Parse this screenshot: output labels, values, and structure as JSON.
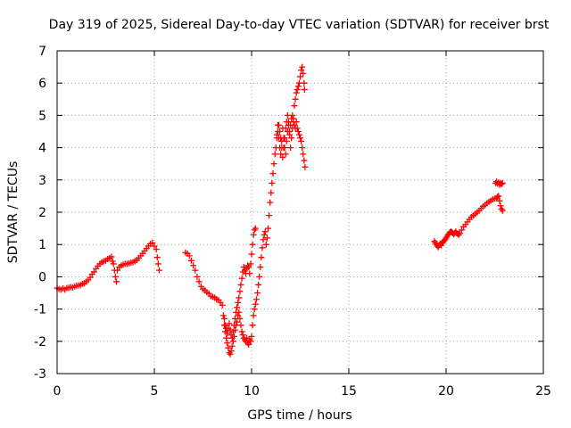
{
  "chart_data": {
    "type": "scatter",
    "title": "Day 319 of 2025, Sidereal Day-to-day VTEC variation (SDTVAR) for receiver brst",
    "xlabel": "GPS time / hours",
    "ylabel": "SDTVAR / TECUs",
    "xlim": [
      0,
      25
    ],
    "ylim": [
      -3,
      7
    ],
    "xticks": [
      "0",
      "5",
      "10",
      "15",
      "20",
      "25"
    ],
    "yticks": [
      "-3",
      "-2",
      "-1",
      "0",
      "1",
      "2",
      "3",
      "4",
      "5",
      "6",
      "7"
    ],
    "grid": true,
    "marker": "+",
    "color": "#ff0000",
    "series": [
      {
        "points": [
          [
            0.0,
            -0.35
          ],
          [
            0.1,
            -0.38
          ],
          [
            0.2,
            -0.4
          ],
          [
            0.3,
            -0.36
          ],
          [
            0.4,
            -0.4
          ],
          [
            0.5,
            -0.35
          ],
          [
            0.6,
            -0.34
          ],
          [
            0.7,
            -0.32
          ],
          [
            0.8,
            -0.33
          ],
          [
            0.9,
            -0.3
          ],
          [
            1.0,
            -0.28
          ],
          [
            1.1,
            -0.27
          ],
          [
            1.2,
            -0.26
          ],
          [
            1.3,
            -0.22
          ],
          [
            1.4,
            -0.2
          ],
          [
            1.5,
            -0.15
          ],
          [
            1.6,
            -0.1
          ],
          [
            1.7,
            -0.02
          ],
          [
            1.8,
            0.08
          ],
          [
            1.9,
            0.15
          ],
          [
            2.0,
            0.25
          ],
          [
            2.1,
            0.33
          ],
          [
            2.2,
            0.4
          ],
          [
            2.3,
            0.45
          ],
          [
            2.4,
            0.48
          ],
          [
            2.5,
            0.5
          ],
          [
            2.6,
            0.55
          ],
          [
            2.7,
            0.58
          ],
          [
            2.8,
            0.62
          ],
          [
            2.85,
            0.48
          ],
          [
            2.9,
            0.4
          ],
          [
            2.95,
            0.2
          ],
          [
            3.0,
            0.0
          ],
          [
            3.05,
            -0.15
          ],
          [
            3.1,
            0.2
          ],
          [
            3.2,
            0.3
          ],
          [
            3.3,
            0.35
          ],
          [
            3.4,
            0.38
          ],
          [
            3.5,
            0.4
          ],
          [
            3.6,
            0.4
          ],
          [
            3.7,
            0.42
          ],
          [
            3.8,
            0.44
          ],
          [
            3.9,
            0.45
          ],
          [
            4.0,
            0.48
          ],
          [
            4.1,
            0.52
          ],
          [
            4.2,
            0.58
          ],
          [
            4.3,
            0.65
          ],
          [
            4.4,
            0.72
          ],
          [
            4.5,
            0.8
          ],
          [
            4.6,
            0.88
          ],
          [
            4.7,
            0.95
          ],
          [
            4.8,
            1.02
          ],
          [
            4.9,
            1.05
          ],
          [
            5.0,
            0.95
          ],
          [
            5.1,
            0.85
          ],
          [
            5.15,
            0.6
          ],
          [
            5.2,
            0.4
          ],
          [
            5.25,
            0.2
          ]
        ]
      },
      {
        "points": [
          [
            6.6,
            0.75
          ],
          [
            6.7,
            0.72
          ],
          [
            6.8,
            0.65
          ],
          [
            6.9,
            0.5
          ],
          [
            7.0,
            0.35
          ],
          [
            7.1,
            0.2
          ],
          [
            7.2,
            0.0
          ],
          [
            7.3,
            -0.15
          ],
          [
            7.4,
            -0.3
          ],
          [
            7.5,
            -0.38
          ],
          [
            7.6,
            -0.42
          ],
          [
            7.7,
            -0.48
          ],
          [
            7.8,
            -0.52
          ],
          [
            7.9,
            -0.6
          ],
          [
            8.0,
            -0.62
          ],
          [
            8.1,
            -0.65
          ],
          [
            8.2,
            -0.7
          ],
          [
            8.3,
            -0.72
          ],
          [
            8.4,
            -0.8
          ],
          [
            8.5,
            -0.88
          ],
          [
            8.55,
            -1.2
          ],
          [
            8.6,
            -1.5
          ],
          [
            8.65,
            -1.7
          ],
          [
            8.7,
            -1.9
          ],
          [
            8.75,
            -2.05
          ],
          [
            8.8,
            -2.2
          ],
          [
            8.85,
            -2.35
          ],
          [
            8.9,
            -2.4
          ],
          [
            8.95,
            -2.3
          ],
          [
            9.0,
            -2.15
          ],
          [
            9.05,
            -2.0
          ],
          [
            9.1,
            -1.85
          ],
          [
            9.15,
            -1.65
          ],
          [
            9.2,
            -1.5
          ],
          [
            9.25,
            -1.4
          ],
          [
            9.3,
            -1.2
          ],
          [
            9.35,
            -1.1
          ],
          [
            9.4,
            -1.3
          ],
          [
            9.45,
            -1.5
          ],
          [
            9.5,
            -1.7
          ],
          [
            9.55,
            -1.8
          ],
          [
            9.6,
            -1.9
          ],
          [
            9.65,
            -1.95
          ],
          [
            9.7,
            -2.0
          ],
          [
            9.75,
            -1.9
          ],
          [
            9.8,
            -2.05
          ],
          [
            9.85,
            -2.1
          ],
          [
            9.9,
            -1.95
          ],
          [
            9.95,
            -2.0
          ],
          [
            10.0,
            -1.85
          ],
          [
            10.05,
            -1.5
          ],
          [
            10.1,
            -1.2
          ],
          [
            10.15,
            -1.0
          ],
          [
            10.2,
            -0.85
          ],
          [
            10.25,
            -0.7
          ],
          [
            10.3,
            -0.5
          ],
          [
            10.35,
            -0.25
          ],
          [
            10.4,
            0.0
          ],
          [
            10.45,
            0.3
          ],
          [
            10.5,
            0.6
          ],
          [
            10.55,
            0.9
          ],
          [
            10.6,
            1.15
          ],
          [
            10.65,
            1.3
          ],
          [
            10.7,
            1.4
          ],
          [
            10.75,
            1.0
          ],
          [
            10.8,
            1.2
          ],
          [
            10.85,
            1.5
          ],
          [
            10.9,
            1.9
          ],
          [
            10.95,
            2.3
          ],
          [
            11.0,
            2.6
          ],
          [
            11.05,
            2.9
          ],
          [
            11.1,
            3.2
          ],
          [
            11.15,
            3.5
          ],
          [
            11.2,
            3.8
          ],
          [
            11.25,
            4.0
          ],
          [
            11.3,
            4.4
          ],
          [
            11.35,
            4.7
          ],
          [
            11.4,
            4.3
          ],
          [
            11.45,
            4.0
          ],
          [
            11.5,
            3.8
          ],
          [
            11.55,
            4.2
          ],
          [
            11.6,
            4.6
          ],
          [
            11.65,
            4.3
          ],
          [
            11.7,
            4.0
          ],
          [
            11.75,
            3.8
          ],
          [
            11.8,
            4.2
          ],
          [
            11.85,
            4.5
          ],
          [
            11.9,
            4.8
          ],
          [
            11.95,
            4.4
          ],
          [
            12.0,
            4.0
          ],
          [
            12.05,
            4.3
          ],
          [
            12.1,
            4.6
          ],
          [
            12.15,
            4.9
          ],
          [
            12.2,
            5.3
          ],
          [
            12.25,
            5.5
          ],
          [
            12.3,
            5.7
          ],
          [
            12.35,
            5.8
          ],
          [
            12.4,
            5.9
          ],
          [
            12.45,
            6.0
          ],
          [
            12.5,
            6.2
          ],
          [
            12.55,
            6.4
          ],
          [
            12.6,
            6.5
          ],
          [
            12.65,
            6.3
          ],
          [
            12.7,
            6.0
          ],
          [
            12.72,
            5.8
          ]
        ]
      },
      {
        "points": [
          [
            8.6,
            -1.3
          ],
          [
            8.65,
            -1.5
          ],
          [
            8.7,
            -1.6
          ],
          [
            8.75,
            -1.75
          ],
          [
            8.8,
            -1.6
          ],
          [
            8.85,
            -1.45
          ],
          [
            8.9,
            -1.65
          ],
          [
            8.95,
            -1.8
          ],
          [
            9.0,
            -1.9
          ],
          [
            9.05,
            -1.7
          ],
          [
            9.1,
            -1.5
          ],
          [
            9.15,
            -1.3
          ],
          [
            9.2,
            -1.1
          ],
          [
            9.25,
            -0.95
          ],
          [
            9.3,
            -0.8
          ],
          [
            9.35,
            -0.65
          ],
          [
            9.4,
            -0.45
          ],
          [
            9.45,
            -0.25
          ],
          [
            9.5,
            -0.05
          ],
          [
            9.55,
            0.15
          ],
          [
            9.6,
            0.3
          ],
          [
            9.65,
            0.2
          ],
          [
            9.7,
            0.1
          ],
          [
            9.75,
            0.25
          ],
          [
            9.8,
            0.35
          ],
          [
            9.85,
            0.3
          ],
          [
            9.9,
            0.1
          ],
          [
            9.95,
            0.4
          ],
          [
            10.0,
            0.7
          ],
          [
            10.05,
            1.0
          ],
          [
            10.1,
            1.3
          ],
          [
            10.15,
            1.45
          ],
          [
            10.2,
            1.5
          ]
        ]
      },
      {
        "points": [
          [
            11.3,
            4.3
          ],
          [
            11.35,
            4.5
          ],
          [
            11.4,
            4.7
          ],
          [
            11.45,
            4.5
          ],
          [
            11.5,
            4.3
          ],
          [
            11.55,
            4.0
          ],
          [
            11.6,
            3.7
          ],
          [
            11.65,
            4.0
          ],
          [
            11.7,
            4.3
          ],
          [
            11.75,
            4.6
          ],
          [
            11.8,
            4.8
          ],
          [
            11.85,
            5.0
          ],
          [
            11.9,
            4.7
          ],
          [
            11.95,
            4.5
          ],
          [
            12.0,
            4.7
          ],
          [
            12.05,
            4.9
          ],
          [
            12.1,
            5.0
          ],
          [
            12.15,
            4.8
          ],
          [
            12.2,
            4.7
          ],
          [
            12.25,
            4.6
          ],
          [
            12.3,
            4.8
          ],
          [
            12.35,
            4.6
          ],
          [
            12.4,
            4.5
          ],
          [
            12.45,
            4.4
          ],
          [
            12.5,
            4.3
          ],
          [
            12.55,
            4.2
          ],
          [
            12.6,
            4.0
          ],
          [
            12.65,
            3.8
          ],
          [
            12.7,
            3.6
          ],
          [
            12.75,
            3.4
          ]
        ]
      },
      {
        "points": [
          [
            19.4,
            1.1
          ],
          [
            19.45,
            1.05
          ],
          [
            19.5,
            1.0
          ],
          [
            19.55,
            0.95
          ],
          [
            19.6,
            0.92
          ],
          [
            19.65,
            0.98
          ],
          [
            19.7,
            1.02
          ],
          [
            19.75,
            0.97
          ],
          [
            19.8,
            1.05
          ],
          [
            19.85,
            1.08
          ],
          [
            19.9,
            1.12
          ],
          [
            19.95,
            1.15
          ],
          [
            20.0,
            1.2
          ],
          [
            20.05,
            1.25
          ],
          [
            20.1,
            1.3
          ],
          [
            20.15,
            1.33
          ],
          [
            20.2,
            1.38
          ],
          [
            20.25,
            1.4
          ],
          [
            20.3,
            1.38
          ],
          [
            20.35,
            1.35
          ],
          [
            20.4,
            1.32
          ],
          [
            20.45,
            1.36
          ],
          [
            20.5,
            1.4
          ],
          [
            20.55,
            1.35
          ],
          [
            20.6,
            1.33
          ],
          [
            20.65,
            1.3
          ],
          [
            20.7,
            1.35
          ],
          [
            20.8,
            1.45
          ],
          [
            20.9,
            1.55
          ],
          [
            21.0,
            1.62
          ],
          [
            21.1,
            1.7
          ],
          [
            21.2,
            1.78
          ],
          [
            21.3,
            1.85
          ],
          [
            21.4,
            1.9
          ],
          [
            21.5,
            1.95
          ],
          [
            21.6,
            2.0
          ],
          [
            21.7,
            2.05
          ],
          [
            21.8,
            2.12
          ],
          [
            21.9,
            2.18
          ],
          [
            22.0,
            2.22
          ],
          [
            22.1,
            2.28
          ],
          [
            22.2,
            2.32
          ],
          [
            22.3,
            2.36
          ],
          [
            22.4,
            2.4
          ],
          [
            22.5,
            2.42
          ],
          [
            22.6,
            2.44
          ],
          [
            22.65,
            2.48
          ],
          [
            22.7,
            2.5
          ],
          [
            22.75,
            2.35
          ],
          [
            22.8,
            2.2
          ],
          [
            22.85,
            2.1
          ],
          [
            22.9,
            2.05
          ],
          [
            22.55,
            2.9
          ],
          [
            22.6,
            2.95
          ],
          [
            22.65,
            2.88
          ],
          [
            22.7,
            2.92
          ],
          [
            22.75,
            2.85
          ],
          [
            22.8,
            2.9
          ],
          [
            22.85,
            2.87
          ],
          [
            22.9,
            2.9
          ]
        ]
      }
    ]
  }
}
